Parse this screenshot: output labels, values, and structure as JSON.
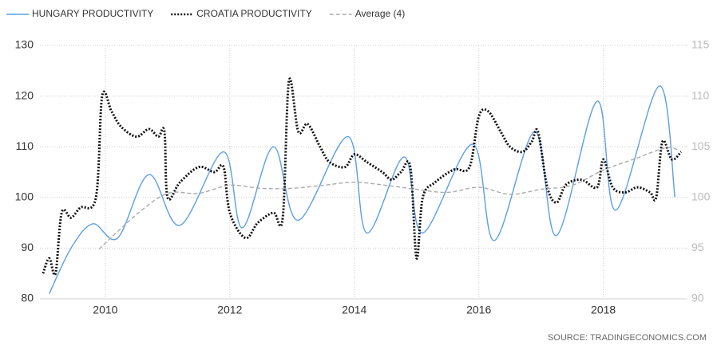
{
  "chart_data": {
    "type": "line",
    "source": "SOURCE:  TRADINGECONOMICS.COM",
    "xlim": [
      2008.95,
      2019.3
    ],
    "xticks": [
      2010,
      2012,
      2014,
      2016,
      2018
    ],
    "ylim": [
      80,
      130
    ],
    "yticks": [
      80,
      90,
      100,
      110,
      120,
      130
    ],
    "y2lim": [
      90,
      115
    ],
    "y2ticks": [
      90,
      95,
      100,
      105,
      110,
      115
    ],
    "grid": true,
    "legend": "top-left",
    "series": [
      {
        "name": "HUNGARY PRODUCTIVITY",
        "color": "#5b9ee6",
        "style": "solid",
        "x": [
          2009.1,
          2009.45,
          2009.8,
          2010.2,
          2010.7,
          2011.2,
          2011.9,
          2012.2,
          2012.7,
          2013.1,
          2013.9,
          2014.2,
          2014.8,
          2015.1,
          2015.9,
          2016.25,
          2016.9,
          2017.25,
          2017.9,
          2018.2,
          2018.9,
          2019.15
        ],
        "values": [
          81,
          90,
          94.8,
          92,
          104.5,
          94.5,
          109,
          94,
          110,
          95.5,
          112,
          93,
          108,
          93,
          110.5,
          91.5,
          113,
          92.5,
          119,
          97.5,
          122,
          100
        ]
      },
      {
        "name": "CROATIA PRODUCTIVITY",
        "color": "#111111",
        "style": "dotted",
        "x": [
          2009.0,
          2009.1,
          2009.2,
          2009.3,
          2009.45,
          2009.6,
          2009.85,
          2009.95,
          2010.1,
          2010.25,
          2010.5,
          2010.7,
          2010.85,
          2010.95,
          2011.0,
          2011.2,
          2011.5,
          2011.75,
          2011.9,
          2012.0,
          2012.25,
          2012.45,
          2012.7,
          2012.85,
          2012.95,
          2013.1,
          2013.25,
          2013.45,
          2013.6,
          2013.85,
          2014.0,
          2014.2,
          2014.45,
          2014.6,
          2014.75,
          2014.9,
          2015.0,
          2015.1,
          2015.3,
          2015.6,
          2015.85,
          2016.0,
          2016.15,
          2016.35,
          2016.5,
          2016.7,
          2016.85,
          2016.95,
          2017.1,
          2017.25,
          2017.4,
          2017.65,
          2017.9,
          2018.0,
          2018.15,
          2018.35,
          2018.55,
          2018.75,
          2018.85,
          2018.95,
          2019.1,
          2019.25
        ],
        "values": [
          85,
          88,
          85,
          97,
          96,
          98,
          100,
          120,
          117,
          114,
          112,
          113.5,
          112,
          113,
          100,
          103,
          106,
          105,
          106,
          97,
          92,
          95,
          97,
          96,
          123,
          113,
          114.5,
          110,
          107,
          106,
          108.5,
          107,
          105,
          103.5,
          105,
          106,
          88,
          100,
          103,
          105.5,
          106,
          116,
          117,
          113,
          110,
          109,
          111,
          113,
          102,
          99,
          102.5,
          103.5,
          102,
          107.5,
          102,
          101,
          102,
          101,
          100,
          111,
          107.5,
          109
        ]
      },
      {
        "name": "Average (4)",
        "color": "#aaaaaa",
        "style": "dashed",
        "axis": "y2",
        "x": [
          2009.9,
          2010.5,
          2011.0,
          2011.5,
          2012.0,
          2012.5,
          2013.0,
          2013.5,
          2014.0,
          2014.5,
          2015.0,
          2015.5,
          2016.0,
          2016.5,
          2017.0,
          2017.5,
          2018.0,
          2018.5,
          2019.0,
          2019.2
        ],
        "values": [
          94.9,
          98.3,
          100.4,
          100.4,
          101.2,
          100.9,
          100.9,
          101.2,
          101.5,
          101.2,
          100.8,
          100.5,
          101,
          100.3,
          100.8,
          101.2,
          102.7,
          103.8,
          104.9,
          104.7
        ]
      }
    ]
  }
}
